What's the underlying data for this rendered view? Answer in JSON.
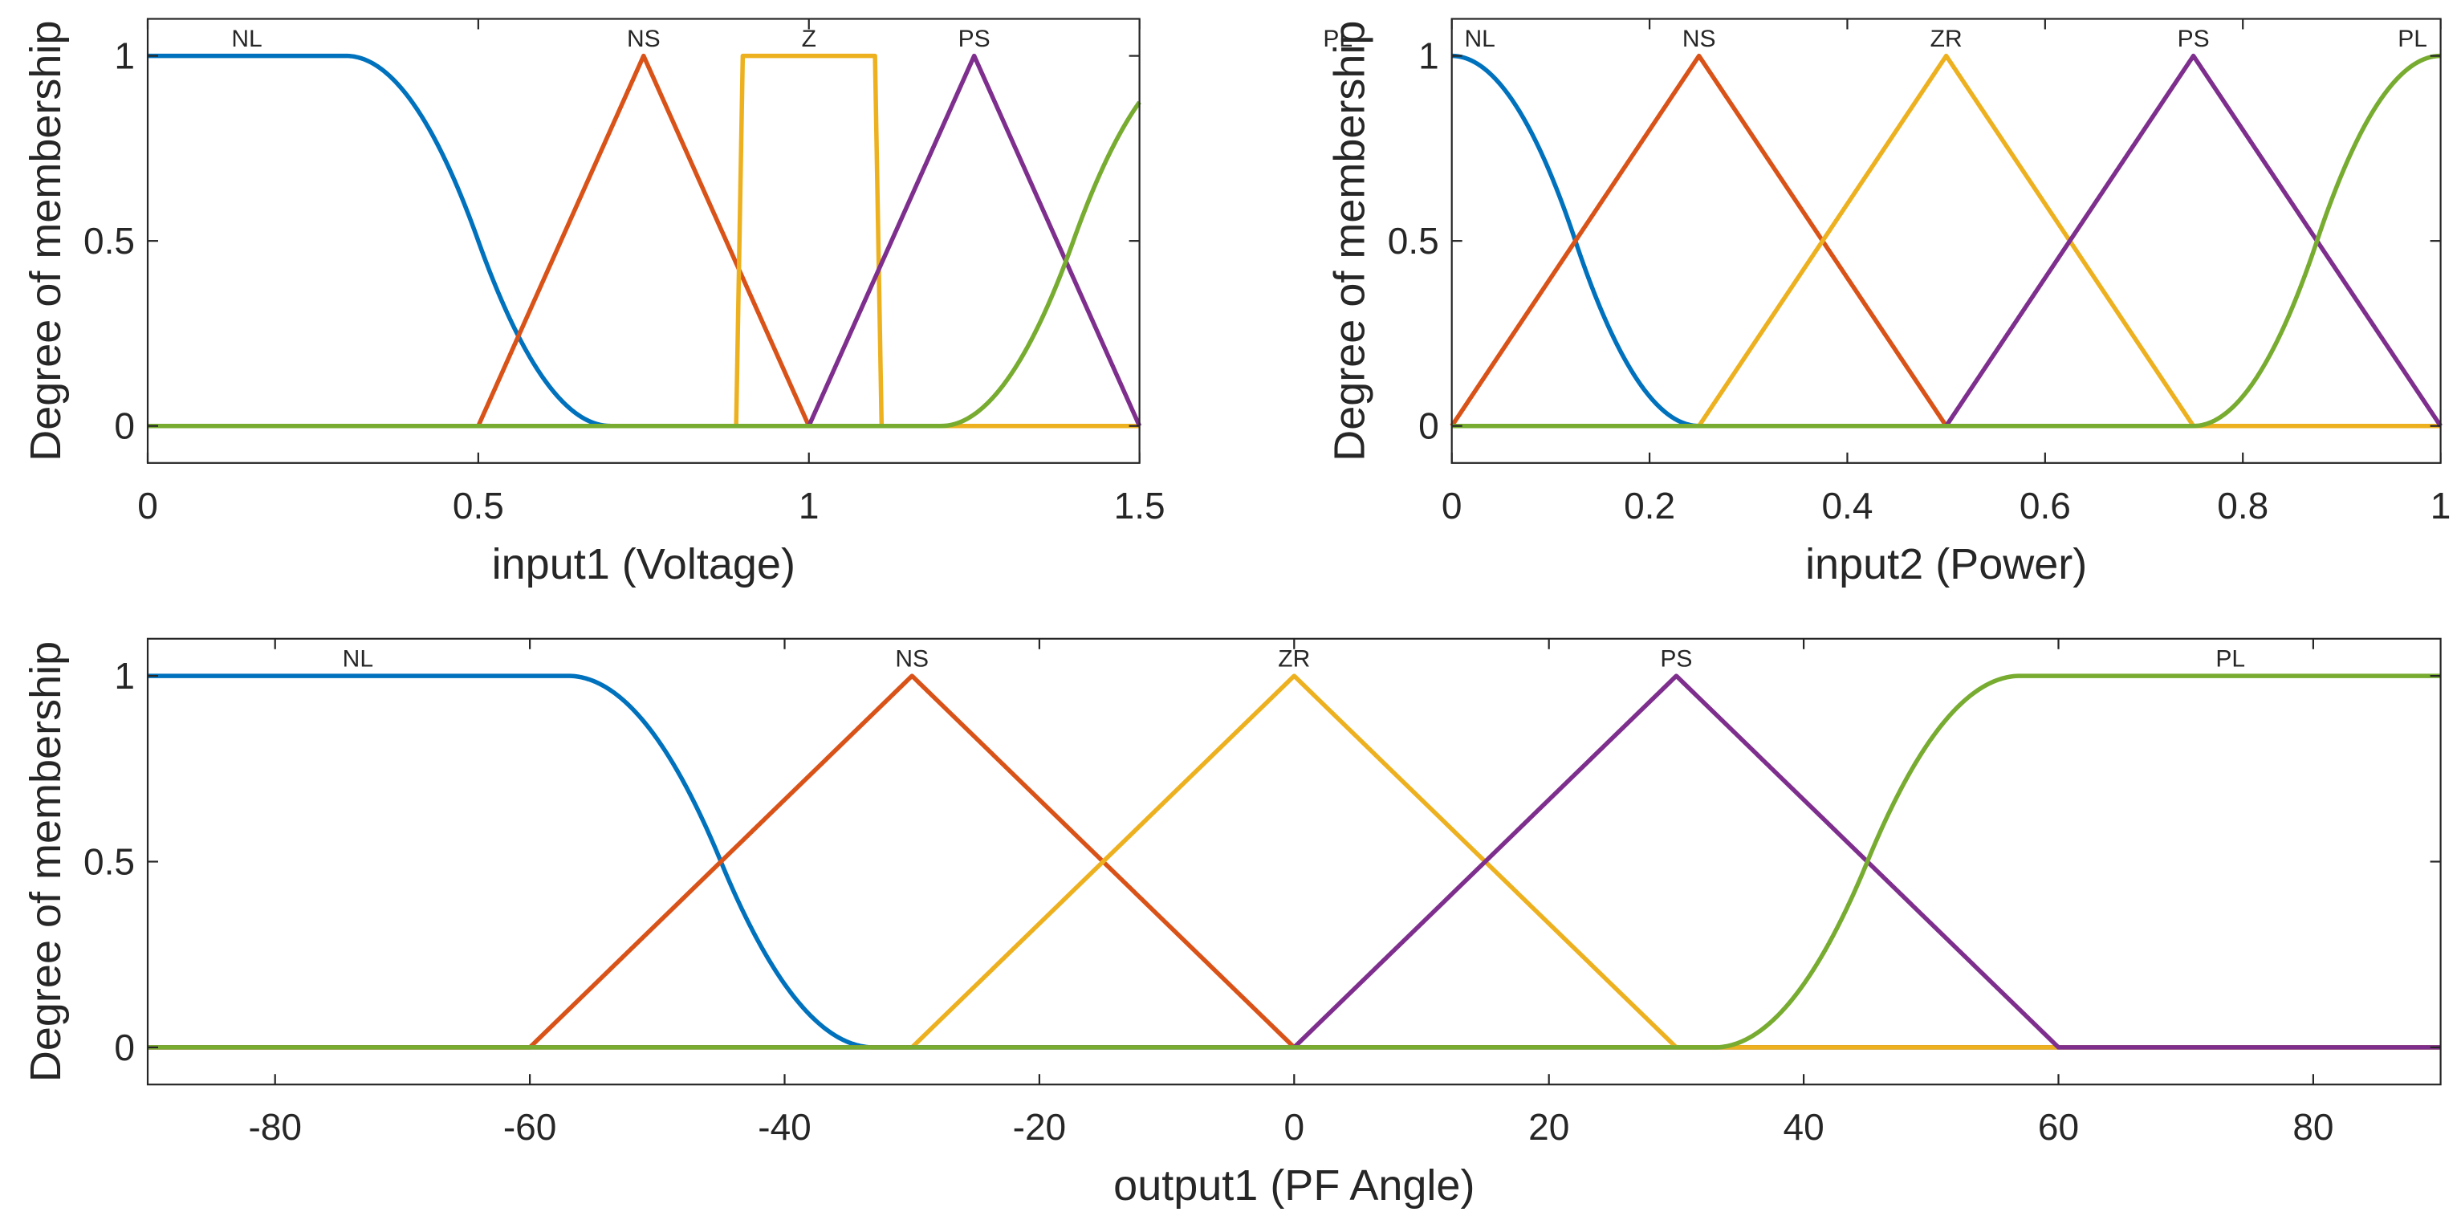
{
  "chart_data": [
    {
      "type": "line",
      "xlabel": "input1 (Voltage)",
      "ylabel": "Degree of membership",
      "xlim": [
        0,
        1.5
      ],
      "ylim": [
        -0.1,
        1.1
      ],
      "xticks": [
        0,
        0.5,
        1,
        1.5
      ],
      "xtick_labels": [
        "0",
        "0.5",
        "1",
        "1.5"
      ],
      "yticks": [
        0,
        0.5,
        1
      ],
      "ytick_labels": [
        "0",
        "0.5",
        "1"
      ],
      "grid": false,
      "series": [
        {
          "name": "NL",
          "shape": "zmf",
          "params": [
            0.3,
            0.7
          ],
          "color": "#0072BD"
        },
        {
          "name": "NS",
          "shape": "trimf",
          "params": [
            0.5,
            0.75,
            1.0
          ],
          "color": "#D95319"
        },
        {
          "name": "Z",
          "shape": "trapmf",
          "params": [
            0.89,
            0.9,
            1.1,
            1.11
          ],
          "color": "#EDB120"
        },
        {
          "name": "PS",
          "shape": "trimf",
          "params": [
            1.0,
            1.25,
            1.5
          ],
          "color": "#7E2F8E"
        },
        {
          "name": "PL",
          "shape": "smf",
          "params": [
            1.2,
            1.6
          ],
          "color": "#77AC30"
        }
      ]
    },
    {
      "type": "line",
      "xlabel": "input2 (Power)",
      "ylabel": "Degree of membership",
      "xlim": [
        0,
        1
      ],
      "ylim": [
        -0.1,
        1.1
      ],
      "xticks": [
        0,
        0.2,
        0.4,
        0.6,
        0.8,
        1
      ],
      "xtick_labels": [
        "0",
        "0.2",
        "0.4",
        "0.6",
        "0.8",
        "1"
      ],
      "yticks": [
        0,
        0.5,
        1
      ],
      "ytick_labels": [
        "0",
        "0.5",
        "1"
      ],
      "grid": false,
      "series": [
        {
          "name": "NL",
          "shape": "zmf",
          "params": [
            0,
            0.25
          ],
          "color": "#0072BD"
        },
        {
          "name": "NS",
          "shape": "trimf",
          "params": [
            0,
            0.25,
            0.5
          ],
          "color": "#D95319"
        },
        {
          "name": "ZR",
          "shape": "trimf",
          "params": [
            0.25,
            0.5,
            0.75
          ],
          "color": "#EDB120"
        },
        {
          "name": "PS",
          "shape": "trimf",
          "params": [
            0.5,
            0.75,
            1.0
          ],
          "color": "#7E2F8E"
        },
        {
          "name": "PL",
          "shape": "smf",
          "params": [
            0.75,
            1.0
          ],
          "color": "#77AC30"
        }
      ]
    },
    {
      "type": "line",
      "xlabel": "output1 (PF Angle)",
      "ylabel": "Degree of membership",
      "xlim": [
        -90,
        90
      ],
      "ylim": [
        -0.1,
        1.1
      ],
      "xticks": [
        -80,
        -60,
        -40,
        -20,
        0,
        20,
        40,
        60,
        80
      ],
      "xtick_labels": [
        "-80",
        "-60",
        "-40",
        "-20",
        "0",
        "20",
        "40",
        "60",
        "80"
      ],
      "yticks": [
        0,
        0.5,
        1
      ],
      "ytick_labels": [
        "0",
        "0.5",
        "1"
      ],
      "grid": false,
      "series": [
        {
          "name": "NL",
          "shape": "zmf",
          "params": [
            -57,
            -33
          ],
          "color": "#0072BD"
        },
        {
          "name": "NS",
          "shape": "trimf",
          "params": [
            -60,
            -30,
            0
          ],
          "color": "#D95319"
        },
        {
          "name": "ZR",
          "shape": "trimf",
          "params": [
            -30,
            0,
            30
          ],
          "color": "#EDB120"
        },
        {
          "name": "PS",
          "shape": "trimf",
          "params": [
            0,
            30,
            60
          ],
          "color": "#7E2F8E"
        },
        {
          "name": "PL",
          "shape": "smf",
          "params": [
            33,
            57
          ],
          "color": "#77AC30"
        }
      ]
    }
  ]
}
